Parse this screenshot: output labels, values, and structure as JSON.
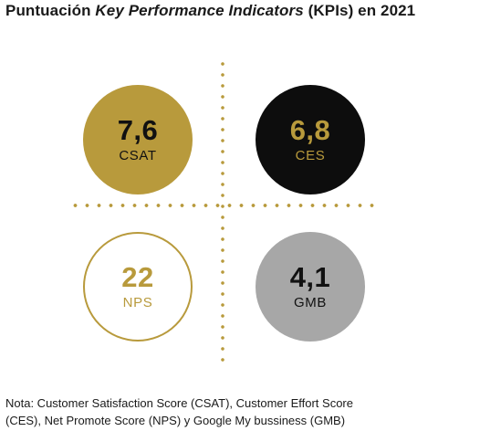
{
  "title": {
    "prefix": "Puntuación ",
    "emphasis": "Key Performance Indicators",
    "suffix": " (KPIs) en 2021"
  },
  "colors": {
    "gold": "#b89a3c",
    "black": "#0d0d0d",
    "gray": "#a7a7a7",
    "white": "#ffffff"
  },
  "kpis": [
    {
      "value": "7,6",
      "label": "CSAT",
      "style": "gold-filled"
    },
    {
      "value": "6,8",
      "label": "CES",
      "style": "black-filled"
    },
    {
      "value": "22",
      "label": "NPS",
      "style": "gold-outline"
    },
    {
      "value": "4,1",
      "label": "GMB",
      "style": "gray-filled"
    }
  ],
  "note": {
    "line1": "Nota: Customer Satisfaction Score (CSAT), Customer Effort Score",
    "line2": "(CES), Net Promote Score (NPS) y Google My bussiness (GMB)"
  }
}
